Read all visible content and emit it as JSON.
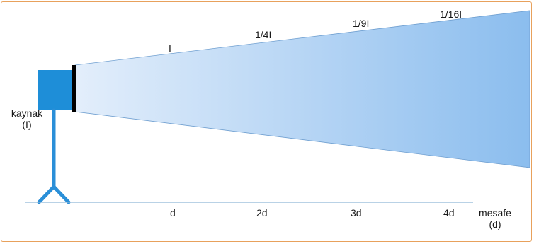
{
  "source": {
    "label_line1": "kaynak",
    "label_line2": "(I)"
  },
  "intensity_labels": [
    "I",
    "1/4I",
    "1/9I",
    "1/16I"
  ],
  "distance_labels": [
    "d",
    "2d",
    "3d",
    "4d"
  ],
  "axis": {
    "label_line1": "mesafe",
    "label_line2": "(d)"
  },
  "colors": {
    "frame": "#e8a15c",
    "source_box": "#1e8ed8",
    "stand": "#2a8fd8",
    "beam_start": "#e3eefb",
    "beam_end": "#8bbdee",
    "axis_line": "#8fb8d8"
  }
}
